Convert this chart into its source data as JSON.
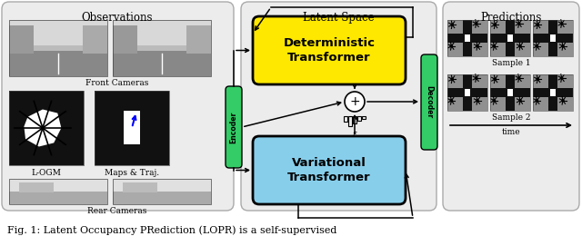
{
  "fig_caption": "Fig. 1: Latent Occupancy PRediction (LOPR) is a self-supervised",
  "title_obs": "Observations",
  "title_latent": "Latent Space",
  "title_pred": "Predictions",
  "label_front": "Front Cameras",
  "label_logm": "L-OGM",
  "label_maps": "Maps & Traj.",
  "label_rear": "Rear Cameras",
  "label_det": "Deterministic\nTransformer",
  "label_var": "Variational\nTransformer",
  "label_encoder": "Encoder",
  "label_decoder": "Decoder",
  "label_sample1": "Sample 1",
  "label_sample2": "Sample 2",
  "label_time": "time",
  "color_det": "#FFE800",
  "color_var": "#87CEEB",
  "color_encoder": "#33CC66",
  "color_decoder": "#33CC66",
  "color_box_bg": "#ECECEC",
  "bg_color": "#FFFFFF"
}
